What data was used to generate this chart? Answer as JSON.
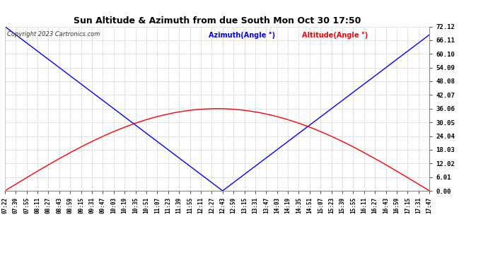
{
  "title": "Sun Altitude & Azimuth from due South Mon Oct 30 17:50",
  "copyright": "Copyright 2023 Cartronics.com",
  "legend_azimuth": "Azimuth(Angle °)",
  "legend_altitude": "Altitude(Angle °)",
  "azimuth_color": "#0000ff",
  "altitude_color": "#ff0000",
  "bg_color": "#ffffff",
  "grid_color": "#bbbbbb",
  "yticks": [
    0.0,
    6.01,
    12.02,
    18.03,
    24.04,
    30.05,
    36.06,
    42.07,
    48.08,
    54.09,
    60.1,
    66.11,
    72.12
  ],
  "ytick_labels": [
    "0.00",
    "6.01",
    "12.02",
    "18.03",
    "24.04",
    "30.05",
    "36.06",
    "42.07",
    "48.08",
    "54.09",
    "60.10",
    "66.11",
    "72.12"
  ],
  "ymin": 0.0,
  "ymax": 72.12,
  "altitude_peak": 36.06,
  "azimuth_min_idx": 20,
  "n_points": 40,
  "xtick_labels": [
    "07:22",
    "07:39",
    "07:55",
    "08:11",
    "08:27",
    "08:43",
    "08:59",
    "09:15",
    "09:31",
    "09:47",
    "10:03",
    "10:19",
    "10:35",
    "10:51",
    "11:07",
    "11:23",
    "11:39",
    "11:55",
    "12:11",
    "12:27",
    "12:43",
    "12:59",
    "13:15",
    "13:31",
    "13:47",
    "14:03",
    "14:19",
    "14:35",
    "14:51",
    "15:07",
    "15:23",
    "15:39",
    "15:55",
    "16:11",
    "16:27",
    "16:43",
    "16:59",
    "17:15",
    "17:31",
    "17:47"
  ]
}
